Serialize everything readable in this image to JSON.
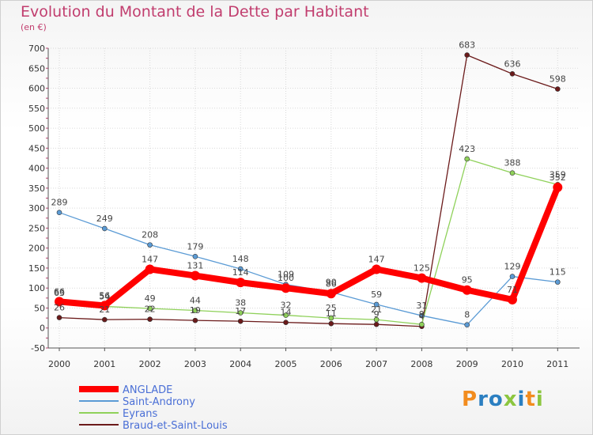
{
  "chart_data": {
    "type": "line",
    "title": "Evolution du Montant de la Dette par Habitant",
    "subtitle": "(en €)",
    "categories": [
      "2000",
      "2001",
      "2002",
      "2003",
      "2004",
      "2005",
      "2006",
      "2007",
      "2008",
      "2009",
      "2010",
      "2011"
    ],
    "ylim": [
      -50,
      700
    ],
    "yticks": [
      -50,
      0,
      50,
      100,
      150,
      200,
      250,
      300,
      350,
      400,
      450,
      500,
      550,
      600,
      650,
      700
    ],
    "grid": true,
    "legend_position": "bottom-left",
    "series": [
      {
        "name": "ANGLADE",
        "color": "#ff0000",
        "values": [
          66,
          56,
          147,
          131,
          114,
          100,
          86,
          147,
          125,
          95,
          71,
          352
        ],
        "labels": [
          "66",
          "56",
          "147",
          "131",
          "114",
          "100",
          "86",
          "147",
          "125",
          "95",
          "71",
          "352"
        ]
      },
      {
        "name": "Saint-Androny",
        "color": "#5b9bd5",
        "values": [
          289,
          249,
          208,
          179,
          148,
          109,
          90,
          59,
          31,
          8,
          129,
          115
        ],
        "labels": [
          "289",
          "249",
          "208",
          "179",
          "148",
          "109",
          "90",
          "59",
          "31",
          "8",
          "129",
          "115"
        ]
      },
      {
        "name": "Eyrans",
        "color": "#8fd15a",
        "values": [
          63,
          54,
          49,
          44,
          38,
          32,
          25,
          21,
          9,
          423,
          388,
          359
        ],
        "labels": [
          "63",
          "54",
          "49",
          "44",
          "38",
          "32",
          "25",
          "21",
          "9",
          "423",
          "388",
          "359"
        ]
      },
      {
        "name": "Braud-et-Saint-Louis",
        "color": "#6b1a1a",
        "values": [
          26,
          21,
          22,
          19,
          17,
          14,
          11,
          9,
          4,
          683,
          636,
          598
        ],
        "labels": [
          "26",
          "21",
          "22",
          "19",
          "17",
          "14",
          "11",
          "9",
          "4",
          "683",
          "636",
          "598"
        ]
      }
    ]
  },
  "logo": {
    "text": "Proxiti",
    "letters": [
      "P",
      "r",
      "o",
      "x",
      "i",
      "t",
      "i"
    ],
    "colors": [
      "#f28c1e",
      "#2b7fc1",
      "#2b7fc1",
      "#8cc63f",
      "#2b7fc1",
      "#f28c1e",
      "#8cc63f"
    ]
  }
}
